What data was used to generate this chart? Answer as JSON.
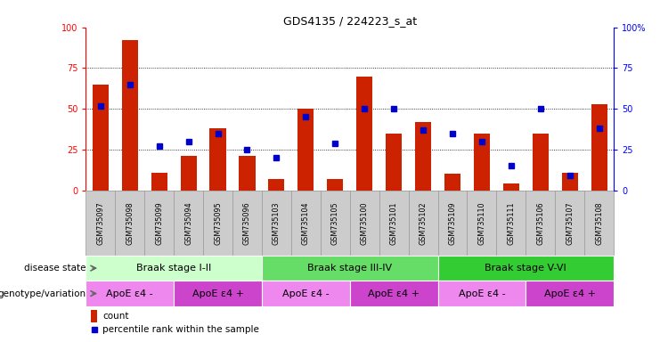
{
  "title": "GDS4135 / 224223_s_at",
  "samples": [
    "GSM735097",
    "GSM735098",
    "GSM735099",
    "GSM735094",
    "GSM735095",
    "GSM735096",
    "GSM735103",
    "GSM735104",
    "GSM735105",
    "GSM735100",
    "GSM735101",
    "GSM735102",
    "GSM735109",
    "GSM735110",
    "GSM735111",
    "GSM735106",
    "GSM735107",
    "GSM735108"
  ],
  "counts": [
    65,
    92,
    11,
    21,
    38,
    21,
    7,
    50,
    7,
    70,
    35,
    42,
    10,
    35,
    4,
    35,
    11,
    53
  ],
  "percentiles": [
    52,
    65,
    27,
    30,
    35,
    25,
    20,
    45,
    29,
    50,
    50,
    37,
    35,
    30,
    15,
    50,
    9,
    38
  ],
  "bar_color": "#cc2200",
  "dot_color": "#0000cc",
  "ylim": [
    0,
    100
  ],
  "grid_lines": [
    25,
    50,
    75
  ],
  "tick_bg_color": "#cccccc",
  "tick_border_color": "#999999",
  "disease_state_groups": [
    {
      "label": "Braak stage I-II",
      "start": 0,
      "end": 6,
      "color": "#ccffcc"
    },
    {
      "label": "Braak stage III-IV",
      "start": 6,
      "end": 12,
      "color": "#66dd66"
    },
    {
      "label": "Braak stage V-VI",
      "start": 12,
      "end": 18,
      "color": "#33cc33"
    }
  ],
  "genotype_groups": [
    {
      "label": "ApoE ε4 -",
      "start": 0,
      "end": 3,
      "color": "#ee88ee"
    },
    {
      "label": "ApoE ε4 +",
      "start": 3,
      "end": 6,
      "color": "#cc44cc"
    },
    {
      "label": "ApoE ε4 -",
      "start": 6,
      "end": 9,
      "color": "#ee88ee"
    },
    {
      "label": "ApoE ε4 +",
      "start": 9,
      "end": 12,
      "color": "#cc44cc"
    },
    {
      "label": "ApoE ε4 -",
      "start": 12,
      "end": 15,
      "color": "#ee88ee"
    },
    {
      "label": "ApoE ε4 +",
      "start": 15,
      "end": 18,
      "color": "#cc44cc"
    }
  ],
  "legend_count_label": "count",
  "legend_pct_label": "percentile rank within the sample",
  "xlabel_disease": "disease state",
  "xlabel_geno": "genotype/variation",
  "left_label_color": "#666666"
}
